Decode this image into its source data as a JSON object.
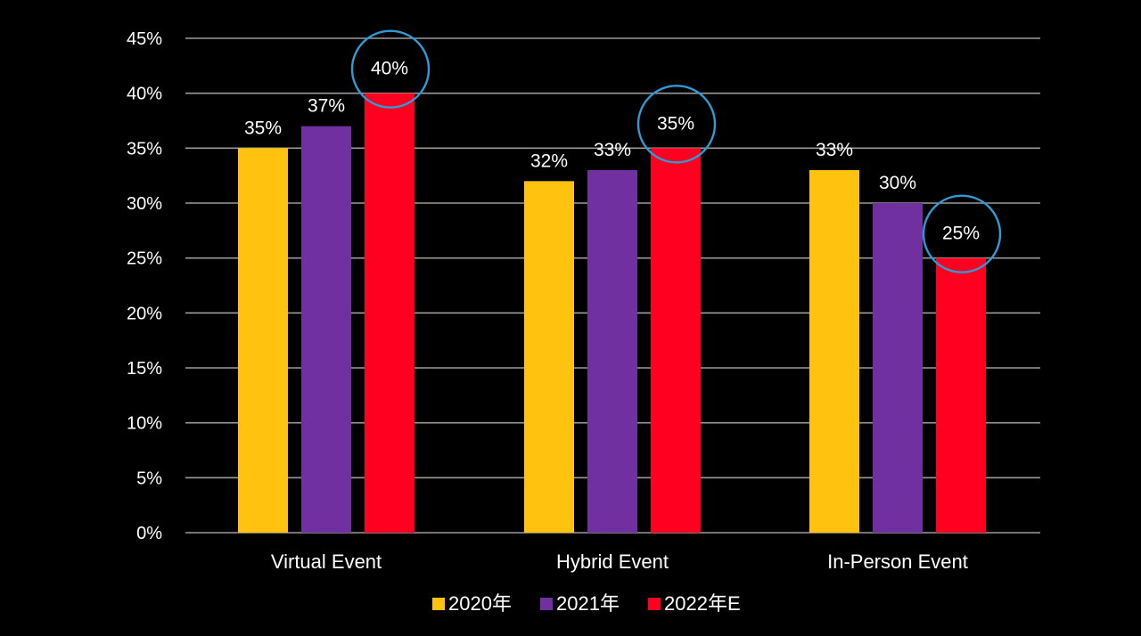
{
  "chart_data": {
    "type": "bar",
    "categories": [
      "Virtual Event",
      "Hybrid Event",
      "In-Person Event"
    ],
    "series": [
      {
        "name": "2020年",
        "values": [
          35,
          32,
          33
        ],
        "color": "#FFC20E"
      },
      {
        "name": "2021年",
        "values": [
          37,
          33,
          30
        ],
        "color": "#7030A0"
      },
      {
        "name": "2022年E",
        "values": [
          40,
          35,
          25
        ],
        "color": "#FF0020"
      }
    ],
    "data_labels": [
      [
        "35%",
        "32%",
        "33%"
      ],
      [
        "37%",
        "33%",
        "30%"
      ],
      [
        "40%",
        "35%",
        "25%"
      ]
    ],
    "y_ticks": [
      "0%",
      "5%",
      "10%",
      "15%",
      "20%",
      "25%",
      "30%",
      "35%",
      "40%",
      "45%"
    ],
    "ylim": [
      0,
      45
    ],
    "grid": true,
    "legend_position": "bottom-center",
    "highlighted_series": "2022年E",
    "highlight_color": "#2E9BD6",
    "background": "#000000",
    "title": "",
    "xlabel": "",
    "ylabel": ""
  }
}
